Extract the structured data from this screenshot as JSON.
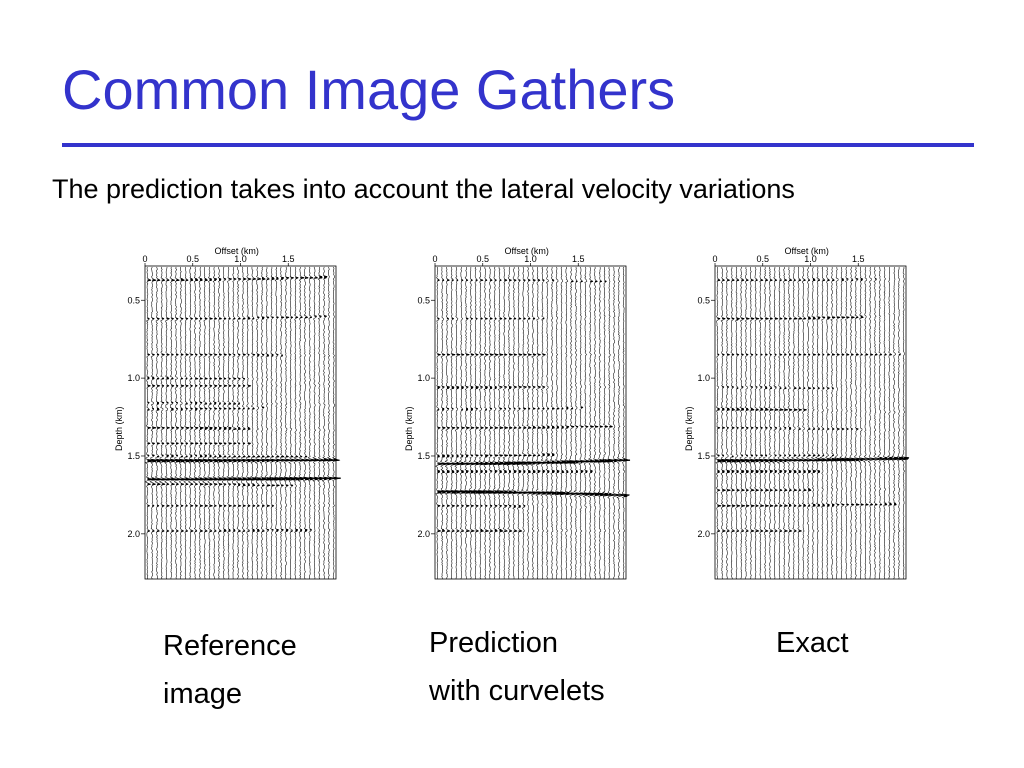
{
  "slide": {
    "title": "Common Image Gathers",
    "subtitle": "The prediction takes into account the lateral velocity variations"
  },
  "chart_data": [
    {
      "type": "seismic-wiggle",
      "xlabel": "Offset (km)",
      "ylabel": "Depth (km)",
      "x_ticks": [
        "0",
        "0.5",
        "1.0",
        "1.5"
      ],
      "y_ticks": [
        "0.5",
        "1.0",
        "1.5",
        "2.0"
      ],
      "caption_lines": [
        "Reference",
        "image"
      ],
      "events_depth_km": [
        0.37,
        0.62,
        0.85,
        1.0,
        1.05,
        1.16,
        1.2,
        1.32,
        1.42,
        1.5,
        1.53,
        1.65,
        1.68,
        1.82,
        1.98
      ],
      "strong_events_depth_km": [
        1.53,
        1.65
      ]
    },
    {
      "type": "seismic-wiggle",
      "xlabel": "Offset (km)",
      "ylabel": "Depth (km)",
      "x_ticks": [
        "0",
        "0.5",
        "1.0",
        "1.5"
      ],
      "y_ticks": [
        "0.5",
        "1.0",
        "1.5",
        "2.0"
      ],
      "caption_lines": [
        "Prediction",
        "with curvelets"
      ],
      "events_depth_km": [
        0.37,
        0.62,
        0.85,
        1.06,
        1.2,
        1.32,
        1.5,
        1.55,
        1.6,
        1.73,
        1.82,
        1.98
      ],
      "strong_events_depth_km": [
        1.55,
        1.73
      ]
    },
    {
      "type": "seismic-wiggle",
      "xlabel": "Offset (km)",
      "ylabel": "Depth (km)",
      "x_ticks": [
        "0",
        "0.5",
        "1.0",
        "1.5"
      ],
      "y_ticks": [
        "0.5",
        "1.0",
        "1.5",
        "2.0"
      ],
      "caption_lines": [
        "Exact"
      ],
      "events_depth_km": [
        0.37,
        0.62,
        0.85,
        1.06,
        1.2,
        1.32,
        1.5,
        1.53,
        1.6,
        1.72,
        1.82,
        1.98
      ],
      "strong_events_depth_km": [
        1.53
      ]
    }
  ]
}
